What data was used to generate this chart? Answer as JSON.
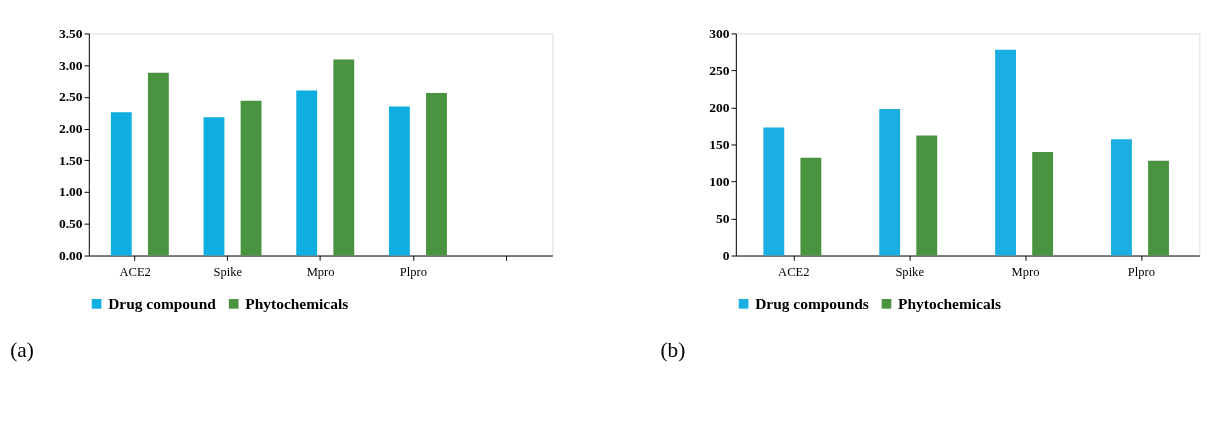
{
  "chart_data": [
    {
      "type": "bar",
      "categories": [
        "ACE2",
        "Spike",
        "Mpro",
        "Plpro",
        null
      ],
      "ylim": [
        0,
        3.5
      ],
      "yticks": [
        {
          "value": 0,
          "label": "0.00"
        },
        {
          "value": 0.5,
          "label": "0.50"
        },
        {
          "value": 1,
          "label": "1.00"
        },
        {
          "value": 1.5,
          "label": "1.50"
        },
        {
          "value": 2,
          "label": "2.00"
        },
        {
          "value": 2.5,
          "label": "2.50"
        },
        {
          "value": 3,
          "label": "3.00"
        },
        {
          "value": 3.5,
          "label": "3.50"
        }
      ],
      "grid": false,
      "legend": "bottom",
      "annotations": [
        "(a)"
      ],
      "series": [
        {
          "name": "Drug compound",
          "color": "#0eaee0",
          "values": [
            2.26,
            2.18,
            2.6,
            2.35,
            null
          ]
        },
        {
          "name": "Phytochemicals",
          "color": "#4a9340",
          "values": [
            2.88,
            2.44,
            3.09,
            2.56,
            null
          ]
        }
      ]
    },
    {
      "type": "bar",
      "categories": [
        "ACE2",
        "Spike",
        "Mpro",
        "Plpro"
      ],
      "ylim": [
        0,
        300
      ],
      "yticks": [
        0,
        50,
        100,
        150,
        200,
        250,
        300
      ],
      "grid": false,
      "legend": "bottom",
      "annotations": [
        "(b)"
      ],
      "series": [
        {
          "name": "Drug compounds",
          "color": "#1aaee3",
          "values": [
            173,
            198,
            278,
            157
          ]
        },
        {
          "name": "Phytochemicals",
          "color": "#4a9340",
          "values": [
            132,
            162,
            140,
            128
          ]
        }
      ]
    }
  ]
}
